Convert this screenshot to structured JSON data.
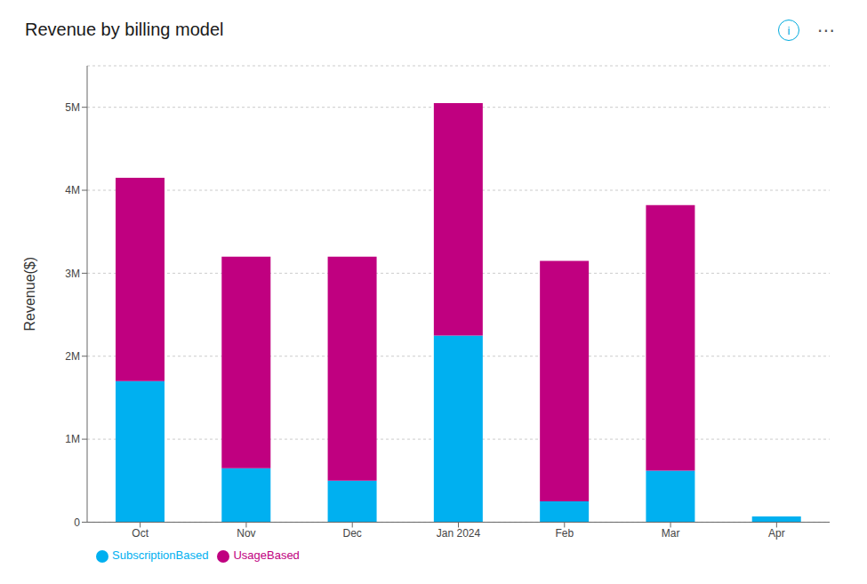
{
  "chart_data": {
    "type": "bar",
    "title": "Revenue by billing model",
    "ylabel": "Revenue($)",
    "categories": [
      "Oct",
      "Nov",
      "Dec",
      "Jan 2024",
      "Feb",
      "Mar",
      "Apr"
    ],
    "series": [
      {
        "name": "SubscriptionBased",
        "color": "#00B0F0",
        "values": [
          1700000,
          650000,
          500000,
          2250000,
          250000,
          620000,
          70000
        ]
      },
      {
        "name": "UsageBased",
        "color": "#C00080",
        "values": [
          2450000,
          2550000,
          2700000,
          2800000,
          2900000,
          3200000,
          0
        ]
      }
    ],
    "stacked": true,
    "ylim": [
      0,
      5500000
    ],
    "yticks": [
      0,
      {
        "value": 1000000,
        "label": "1M"
      },
      {
        "value": 2000000,
        "label": "2M"
      },
      {
        "value": 3000000,
        "label": "3M"
      },
      {
        "value": 4000000,
        "label": "4M"
      },
      {
        "value": 5000000,
        "label": "5M"
      }
    ],
    "grid": true,
    "legend": "lower left",
    "annotations": [
      "i",
      "⋯"
    ]
  }
}
